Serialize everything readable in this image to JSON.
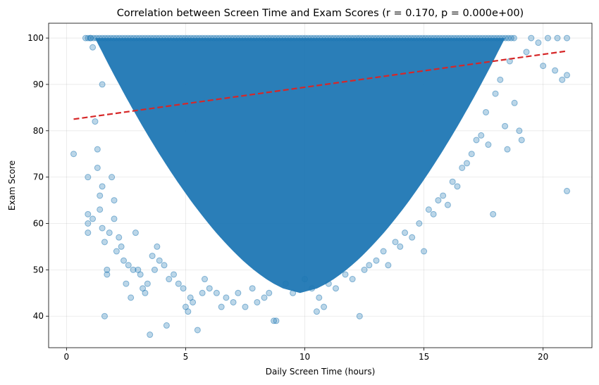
{
  "chart_data": {
    "type": "scatter",
    "title": "Correlation between Screen Time and Exam Scores (r = 0.170, p = 0.000e+00)",
    "xlabel": "Daily Screen Time (hours)",
    "ylabel": "Exam Score",
    "xlim": [
      -0.75,
      22.05
    ],
    "ylim": [
      33.2,
      103.2
    ],
    "xticks": [
      0,
      5,
      10,
      15,
      20
    ],
    "yticks": [
      40,
      50,
      60,
      70,
      80,
      90,
      100
    ],
    "grid": true,
    "legend": "none",
    "colors": {
      "points": "#1f77b4",
      "trend": "#d62728"
    },
    "series": [
      {
        "kind": "points",
        "dense_region": {
          "x_center": 9.8,
          "x_halfwidth_at_100": 8.6,
          "y_floor": 45
        },
        "points": [
          [
            0.3,
            75
          ],
          [
            0.8,
            100
          ],
          [
            0.9,
            70
          ],
          [
            0.9,
            62
          ],
          [
            0.9,
            60
          ],
          [
            0.9,
            58
          ],
          [
            1.0,
            100
          ],
          [
            1.1,
            98
          ],
          [
            1.1,
            61
          ],
          [
            1.2,
            82
          ],
          [
            1.3,
            76
          ],
          [
            1.3,
            72
          ],
          [
            1.4,
            66
          ],
          [
            1.4,
            63
          ],
          [
            1.5,
            90
          ],
          [
            1.5,
            68
          ],
          [
            1.5,
            59
          ],
          [
            1.6,
            56
          ],
          [
            1.6,
            40
          ],
          [
            1.7,
            50
          ],
          [
            1.7,
            49
          ],
          [
            1.8,
            58
          ],
          [
            1.9,
            70
          ],
          [
            2.0,
            65
          ],
          [
            2.0,
            61
          ],
          [
            2.1,
            54
          ],
          [
            2.2,
            57
          ],
          [
            2.3,
            55
          ],
          [
            2.4,
            52
          ],
          [
            2.5,
            47
          ],
          [
            2.6,
            51
          ],
          [
            2.7,
            44
          ],
          [
            2.8,
            50
          ],
          [
            2.9,
            58
          ],
          [
            3.0,
            50
          ],
          [
            3.1,
            49
          ],
          [
            3.2,
            46
          ],
          [
            3.3,
            45
          ],
          [
            3.4,
            47
          ],
          [
            3.5,
            36
          ],
          [
            3.6,
            53
          ],
          [
            3.7,
            50
          ],
          [
            3.8,
            55
          ],
          [
            3.9,
            52
          ],
          [
            4.1,
            51
          ],
          [
            4.2,
            38
          ],
          [
            4.3,
            48
          ],
          [
            4.5,
            49
          ],
          [
            4.7,
            47
          ],
          [
            4.9,
            46
          ],
          [
            5.0,
            42
          ],
          [
            5.1,
            41
          ],
          [
            5.2,
            44
          ],
          [
            5.3,
            43
          ],
          [
            5.5,
            37
          ],
          [
            5.7,
            45
          ],
          [
            5.8,
            48
          ],
          [
            6.0,
            46
          ],
          [
            6.3,
            45
          ],
          [
            6.5,
            42
          ],
          [
            6.7,
            44
          ],
          [
            7.0,
            43
          ],
          [
            7.2,
            45
          ],
          [
            7.5,
            42
          ],
          [
            7.8,
            46
          ],
          [
            8.0,
            43
          ],
          [
            8.3,
            44
          ],
          [
            8.5,
            45
          ],
          [
            8.7,
            39
          ],
          [
            8.8,
            39
          ],
          [
            9.2,
            47
          ],
          [
            9.5,
            45
          ],
          [
            10.0,
            48
          ],
          [
            10.3,
            46
          ],
          [
            10.5,
            41
          ],
          [
            10.6,
            44
          ],
          [
            10.8,
            42
          ],
          [
            11.0,
            47
          ],
          [
            11.3,
            46
          ],
          [
            11.7,
            49
          ],
          [
            12.0,
            48
          ],
          [
            12.3,
            40
          ],
          [
            12.5,
            50
          ],
          [
            12.7,
            51
          ],
          [
            13.0,
            52
          ],
          [
            13.3,
            54
          ],
          [
            13.5,
            51
          ],
          [
            13.8,
            56
          ],
          [
            14.0,
            55
          ],
          [
            14.2,
            58
          ],
          [
            14.5,
            57
          ],
          [
            14.8,
            60
          ],
          [
            15.0,
            54
          ],
          [
            15.2,
            63
          ],
          [
            15.4,
            62
          ],
          [
            15.6,
            65
          ],
          [
            15.8,
            66
          ],
          [
            16.0,
            64
          ],
          [
            16.2,
            69
          ],
          [
            16.4,
            68
          ],
          [
            16.6,
            72
          ],
          [
            16.8,
            73
          ],
          [
            17.0,
            75
          ],
          [
            17.2,
            78
          ],
          [
            17.4,
            79
          ],
          [
            17.6,
            84
          ],
          [
            17.7,
            77
          ],
          [
            17.9,
            62
          ],
          [
            18.0,
            88
          ],
          [
            18.2,
            91
          ],
          [
            18.4,
            81
          ],
          [
            18.5,
            76
          ],
          [
            18.6,
            95
          ],
          [
            18.8,
            86
          ],
          [
            19.0,
            80
          ],
          [
            19.1,
            78
          ],
          [
            19.3,
            97
          ],
          [
            19.5,
            100
          ],
          [
            19.8,
            99
          ],
          [
            20.0,
            94
          ],
          [
            20.2,
            100
          ],
          [
            20.5,
            93
          ],
          [
            20.6,
            100
          ],
          [
            20.8,
            91
          ],
          [
            21.0,
            100
          ],
          [
            21.0,
            92
          ],
          [
            21.0,
            67
          ]
        ]
      },
      {
        "kind": "trendline",
        "style": "dashed",
        "x": [
          0.3,
          21.0
        ],
        "y": [
          82.5,
          97.2
        ]
      }
    ]
  }
}
